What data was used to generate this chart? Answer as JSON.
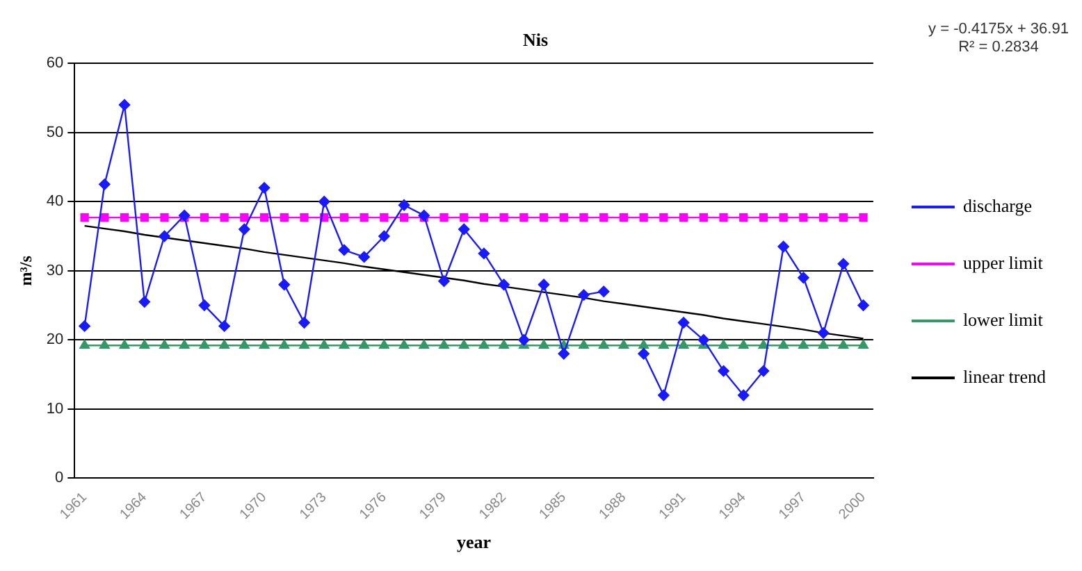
{
  "chart_data": {
    "type": "line",
    "title": "Nis",
    "xlabel": "year",
    "ylabel": "m³/s",
    "categories": [
      "1961",
      null,
      null,
      "1964",
      null,
      null,
      "1967",
      null,
      null,
      "1970",
      null,
      null,
      "1973",
      null,
      null,
      "1976",
      null,
      null,
      "1979",
      null,
      null,
      "1982",
      null,
      null,
      "1985",
      null,
      null,
      "1988",
      null,
      null,
      "1991",
      null,
      null,
      "1994",
      null,
      null,
      "1997",
      null,
      null,
      "2000"
    ],
    "series": [
      {
        "name": "discharge",
        "color": "#1a1aff",
        "marker": "diamond",
        "values": [
          22,
          42.5,
          54,
          25.5,
          35,
          38,
          25,
          22,
          36,
          42,
          28,
          22.5,
          40,
          33,
          32,
          35,
          39.5,
          38,
          28.5,
          36,
          32.5,
          28,
          20,
          28,
          18,
          26.5,
          27,
          null,
          18,
          12,
          22.5,
          20,
          15.5,
          12,
          15.5,
          33.5,
          29,
          21,
          31,
          25
        ]
      },
      {
        "name": "upper limit",
        "color": "#ff00ff",
        "marker": "square",
        "values": [
          37.7,
          37.7,
          37.7,
          37.7,
          37.7,
          37.7,
          37.7,
          37.7,
          37.7,
          37.7,
          37.7,
          37.7,
          37.7,
          37.7,
          37.7,
          37.7,
          37.7,
          37.7,
          37.7,
          37.7,
          37.7,
          37.7,
          37.7,
          37.7,
          37.7,
          37.7,
          37.7,
          37.7,
          37.7,
          37.7,
          37.7,
          37.7,
          37.7,
          37.7,
          37.7,
          37.7,
          37.7,
          37.7,
          37.7,
          37.7
        ]
      },
      {
        "name": "lower limit",
        "color": "#339966",
        "marker": "triangle",
        "values": [
          19.2,
          19.2,
          19.2,
          19.2,
          19.2,
          19.2,
          19.2,
          19.2,
          19.2,
          19.2,
          19.2,
          19.2,
          19.2,
          19.2,
          19.2,
          19.2,
          19.2,
          19.2,
          19.2,
          19.2,
          19.2,
          19.2,
          19.2,
          19.2,
          19.2,
          19.2,
          19.2,
          19.2,
          19.2,
          19.2,
          19.2,
          19.2,
          19.2,
          19.2,
          19.2,
          19.2,
          19.2,
          19.2,
          19.2,
          19.2
        ]
      },
      {
        "name": "linear trend",
        "color": "#000000",
        "marker": "none",
        "values": [
          36.5,
          36.1,
          35.7,
          35.2,
          34.8,
          34.4,
          34.0,
          33.6,
          33.2,
          32.7,
          32.3,
          31.9,
          31.5,
          31.1,
          30.6,
          30.2,
          29.8,
          29.4,
          29.0,
          28.6,
          28.1,
          27.7,
          27.3,
          26.9,
          26.5,
          26.1,
          25.6,
          25.2,
          24.8,
          24.4,
          24.0,
          23.6,
          23.1,
          22.7,
          22.3,
          21.9,
          21.5,
          21.0,
          20.6,
          20.2
        ]
      }
    ],
    "ylim": [
      0,
      60
    ],
    "yticks": [
      0,
      10,
      20,
      30,
      40,
      50,
      60
    ],
    "grid": "y",
    "legend": "right",
    "annotations": [
      "y = -0.4175x + 36.91",
      "R² = 0.2834"
    ]
  }
}
